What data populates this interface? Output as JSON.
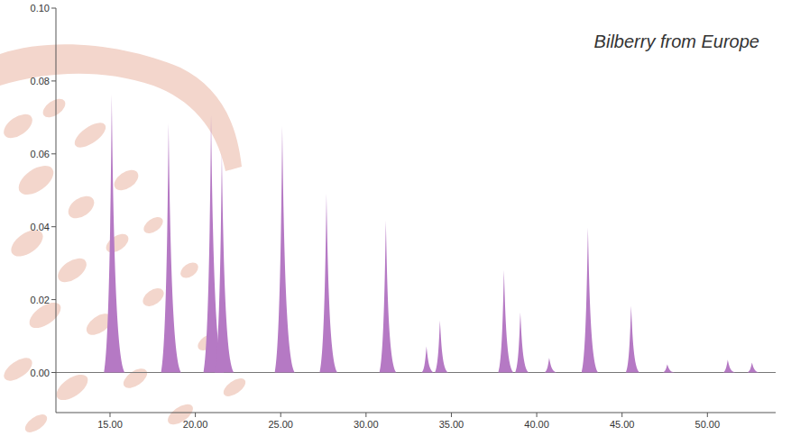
{
  "chart_data": {
    "type": "peaks",
    "title": "Bilberry from Europe",
    "color": "#b579c4",
    "x": [
      15.1,
      18.43,
      20.92,
      21.55,
      25.09,
      27.68,
      31.16,
      33.54,
      34.33,
      38.08,
      39.04,
      40.73,
      43.0,
      45.53,
      47.65,
      51.19,
      52.61
    ],
    "values": [
      0.0763,
      0.0684,
      0.0706,
      0.0602,
      0.0677,
      0.0491,
      0.0417,
      0.0072,
      0.0143,
      0.0281,
      0.0165,
      0.004,
      0.0398,
      0.0183,
      0.0022,
      0.0035,
      0.0027
    ],
    "xlim": [
      11.83,
      54.0
    ],
    "xticks": [
      {
        "value": 15,
        "label": "15.00"
      },
      {
        "value": 20,
        "label": "20.00"
      },
      {
        "value": 25,
        "label": "25.00"
      },
      {
        "value": 30,
        "label": "30.00"
      },
      {
        "value": 35,
        "label": "35.00"
      },
      {
        "value": 40,
        "label": "40.00"
      },
      {
        "value": 45,
        "label": "45.00"
      },
      {
        "value": 50,
        "label": "50.00"
      }
    ],
    "ylim": [
      -0.011,
      0.1
    ],
    "yticks": [
      {
        "value": 0,
        "label": "0.00"
      },
      {
        "value": 0.02,
        "label": "0.02"
      },
      {
        "value": 0.04,
        "label": "0.04"
      },
      {
        "value": 0.06,
        "label": "0.06"
      },
      {
        "value": 0.08,
        "label": "0.08"
      },
      {
        "value": 0.1,
        "label": "0.10"
      }
    ],
    "grid": false
  }
}
